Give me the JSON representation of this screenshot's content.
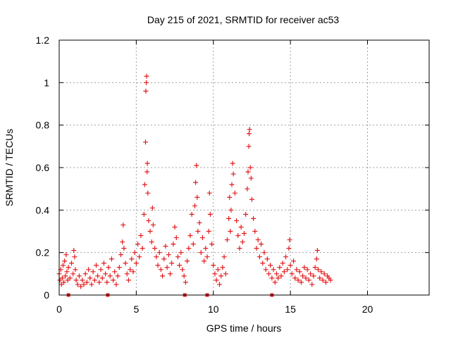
{
  "chart_data": {
    "type": "scatter",
    "title": "Day 215 of 2021, SRMTID for receiver ac53",
    "xlabel": "GPS time / hours",
    "ylabel": "SRMTID / TECUs",
    "xlim": [
      0,
      24
    ],
    "ylim": [
      0,
      1.2
    ],
    "xticks": [
      0,
      5,
      10,
      15,
      20
    ],
    "yticks": [
      0,
      0.2,
      0.4,
      0.6,
      0.8,
      1,
      1.2
    ],
    "xtick_labels": [
      "0",
      "5",
      "10",
      "15",
      "20"
    ],
    "ytick_labels": [
      "0",
      "0.2",
      "0.4",
      "0.6",
      "0.8",
      "1",
      "1.2"
    ],
    "grid": true,
    "marker": "+",
    "color": "#e41a1c",
    "gap_markers_x": [
      0.6,
      3.15,
      8.15,
      9.6,
      13.8
    ],
    "series": [
      {
        "name": "ac53",
        "points": [
          [
            0.0,
            0.1
          ],
          [
            0.05,
            0.07
          ],
          [
            0.1,
            0.12
          ],
          [
            0.15,
            0.05
          ],
          [
            0.2,
            0.08
          ],
          [
            0.25,
            0.14
          ],
          [
            0.3,
            0.06
          ],
          [
            0.35,
            0.16
          ],
          [
            0.4,
            0.09
          ],
          [
            0.45,
            0.19
          ],
          [
            0.5,
            0.11
          ],
          [
            0.55,
            0.07
          ],
          [
            0.6,
            0.13
          ],
          [
            0.7,
            0.08
          ],
          [
            0.8,
            0.15
          ],
          [
            0.9,
            0.1
          ],
          [
            0.95,
            0.21
          ],
          [
            1.0,
            0.18
          ],
          [
            1.05,
            0.12
          ],
          [
            1.1,
            0.07
          ],
          [
            1.2,
            0.05
          ],
          [
            1.3,
            0.09
          ],
          [
            1.4,
            0.04
          ],
          [
            1.5,
            0.07
          ],
          [
            1.6,
            0.05
          ],
          [
            1.7,
            0.1
          ],
          [
            1.8,
            0.06
          ],
          [
            1.9,
            0.12
          ],
          [
            2.0,
            0.08
          ],
          [
            2.1,
            0.05
          ],
          [
            2.2,
            0.11
          ],
          [
            2.3,
            0.07
          ],
          [
            2.4,
            0.14
          ],
          [
            2.5,
            0.09
          ],
          [
            2.6,
            0.06
          ],
          [
            2.7,
            0.12
          ],
          [
            2.8,
            0.08
          ],
          [
            2.9,
            0.15
          ],
          [
            3.0,
            0.1
          ],
          [
            3.1,
            0.06
          ],
          [
            3.2,
            0.13
          ],
          [
            3.3,
            0.09
          ],
          [
            3.4,
            0.17
          ],
          [
            3.5,
            0.07
          ],
          [
            3.6,
            0.11
          ],
          [
            3.7,
            0.05
          ],
          [
            3.8,
            0.09
          ],
          [
            3.9,
            0.13
          ],
          [
            4.0,
            0.19
          ],
          [
            4.1,
            0.25
          ],
          [
            4.15,
            0.33
          ],
          [
            4.2,
            0.22
          ],
          [
            4.3,
            0.15
          ],
          [
            4.4,
            0.1
          ],
          [
            4.5,
            0.07
          ],
          [
            4.6,
            0.12
          ],
          [
            4.7,
            0.17
          ],
          [
            4.8,
            0.11
          ],
          [
            4.9,
            0.2
          ],
          [
            5.0,
            0.15
          ],
          [
            5.1,
            0.24
          ],
          [
            5.2,
            0.18
          ],
          [
            5.3,
            0.28
          ],
          [
            5.4,
            0.22
          ],
          [
            5.5,
            0.38
          ],
          [
            5.55,
            0.52
          ],
          [
            5.6,
            0.72
          ],
          [
            5.62,
            0.96
          ],
          [
            5.65,
            1.0
          ],
          [
            5.67,
            1.03
          ],
          [
            5.7,
            0.58
          ],
          [
            5.72,
            0.62
          ],
          [
            5.75,
            0.48
          ],
          [
            5.8,
            0.35
          ],
          [
            5.9,
            0.3
          ],
          [
            6.0,
            0.25
          ],
          [
            6.05,
            0.41
          ],
          [
            6.1,
            0.33
          ],
          [
            6.2,
            0.22
          ],
          [
            6.3,
            0.18
          ],
          [
            6.4,
            0.14
          ],
          [
            6.5,
            0.2
          ],
          [
            6.6,
            0.12
          ],
          [
            6.7,
            0.09
          ],
          [
            6.8,
            0.17
          ],
          [
            6.9,
            0.23
          ],
          [
            7.0,
            0.13
          ],
          [
            7.1,
            0.19
          ],
          [
            7.2,
            0.1
          ],
          [
            7.3,
            0.15
          ],
          [
            7.4,
            0.24
          ],
          [
            7.5,
            0.32
          ],
          [
            7.6,
            0.27
          ],
          [
            7.7,
            0.18
          ],
          [
            7.8,
            0.14
          ],
          [
            7.9,
            0.2
          ],
          [
            8.0,
            0.12
          ],
          [
            8.1,
            0.09
          ],
          [
            8.2,
            0.06
          ],
          [
            8.3,
            0.16
          ],
          [
            8.4,
            0.22
          ],
          [
            8.5,
            0.28
          ],
          [
            8.6,
            0.38
          ],
          [
            8.7,
            0.24
          ],
          [
            8.8,
            0.42
          ],
          [
            8.85,
            0.53
          ],
          [
            8.9,
            0.61
          ],
          [
            8.95,
            0.46
          ],
          [
            9.0,
            0.3
          ],
          [
            9.1,
            0.34
          ],
          [
            9.2,
            0.2
          ],
          [
            9.3,
            0.27
          ],
          [
            9.4,
            0.16
          ],
          [
            9.5,
            0.22
          ],
          [
            9.6,
            0.18
          ],
          [
            9.7,
            0.3
          ],
          [
            9.75,
            0.48
          ],
          [
            9.8,
            0.38
          ],
          [
            9.9,
            0.24
          ],
          [
            10.0,
            0.14
          ],
          [
            10.1,
            0.1
          ],
          [
            10.2,
            0.07
          ],
          [
            10.3,
            0.12
          ],
          [
            10.4,
            0.05
          ],
          [
            10.5,
            0.09
          ],
          [
            10.6,
            0.13
          ],
          [
            10.7,
            0.18
          ],
          [
            10.8,
            0.1
          ],
          [
            10.9,
            0.26
          ],
          [
            11.0,
            0.36
          ],
          [
            11.05,
            0.46
          ],
          [
            11.1,
            0.3
          ],
          [
            11.15,
            0.4
          ],
          [
            11.2,
            0.52
          ],
          [
            11.25,
            0.62
          ],
          [
            11.3,
            0.57
          ],
          [
            11.4,
            0.48
          ],
          [
            11.5,
            0.35
          ],
          [
            11.6,
            0.28
          ],
          [
            11.7,
            0.22
          ],
          [
            11.8,
            0.32
          ],
          [
            11.9,
            0.25
          ],
          [
            12.0,
            0.29
          ],
          [
            12.1,
            0.38
          ],
          [
            12.2,
            0.5
          ],
          [
            12.25,
            0.58
          ],
          [
            12.3,
            0.7
          ],
          [
            12.32,
            0.76
          ],
          [
            12.35,
            0.78
          ],
          [
            12.4,
            0.6
          ],
          [
            12.45,
            0.55
          ],
          [
            12.5,
            0.45
          ],
          [
            12.6,
            0.36
          ],
          [
            12.7,
            0.3
          ],
          [
            12.8,
            0.22
          ],
          [
            12.9,
            0.26
          ],
          [
            13.0,
            0.18
          ],
          [
            13.1,
            0.24
          ],
          [
            13.2,
            0.15
          ],
          [
            13.3,
            0.2
          ],
          [
            13.4,
            0.12
          ],
          [
            13.5,
            0.17
          ],
          [
            13.6,
            0.1
          ],
          [
            13.7,
            0.14
          ],
          [
            13.8,
            0.08
          ],
          [
            13.9,
            0.12
          ],
          [
            14.0,
            0.06
          ],
          [
            14.1,
            0.1
          ],
          [
            14.2,
            0.08
          ],
          [
            14.3,
            0.13
          ],
          [
            14.4,
            0.09
          ],
          [
            14.5,
            0.15
          ],
          [
            14.6,
            0.11
          ],
          [
            14.7,
            0.18
          ],
          [
            14.8,
            0.12
          ],
          [
            14.9,
            0.22
          ],
          [
            14.95,
            0.26
          ],
          [
            15.0,
            0.14
          ],
          [
            15.1,
            0.1
          ],
          [
            15.2,
            0.16
          ],
          [
            15.3,
            0.08
          ],
          [
            15.4,
            0.12
          ],
          [
            15.5,
            0.07
          ],
          [
            15.6,
            0.11
          ],
          [
            15.7,
            0.06
          ],
          [
            15.8,
            0.09
          ],
          [
            15.9,
            0.13
          ],
          [
            16.0,
            0.08
          ],
          [
            16.1,
            0.12
          ],
          [
            16.2,
            0.07
          ],
          [
            16.3,
            0.1
          ],
          [
            16.4,
            0.05
          ],
          [
            16.5,
            0.09
          ],
          [
            16.6,
            0.13
          ],
          [
            16.7,
            0.17
          ],
          [
            16.75,
            0.21
          ],
          [
            16.8,
            0.12
          ],
          [
            16.9,
            0.08
          ],
          [
            17.0,
            0.11
          ],
          [
            17.1,
            0.07
          ],
          [
            17.2,
            0.1
          ],
          [
            17.3,
            0.06
          ],
          [
            17.4,
            0.09
          ],
          [
            17.5,
            0.08
          ],
          [
            17.6,
            0.07
          ]
        ]
      }
    ]
  }
}
